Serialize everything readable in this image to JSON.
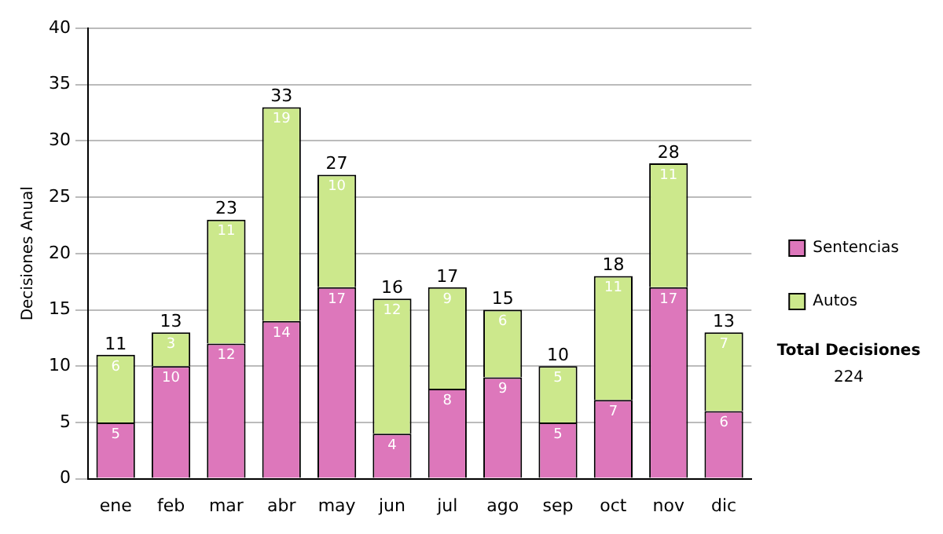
{
  "chart_data": {
    "type": "bar",
    "stacked": true,
    "ylabel": "Decisiones Anual",
    "categories": [
      "ene",
      "feb",
      "mar",
      "abr",
      "may",
      "jun",
      "jul",
      "ago",
      "sep",
      "oct",
      "nov",
      "dic"
    ],
    "series": [
      {
        "name": "Sentencias",
        "color": "#dd77bb",
        "values": [
          5,
          10,
          12,
          14,
          17,
          4,
          8,
          9,
          5,
          7,
          17,
          6
        ]
      },
      {
        "name": "Autos",
        "color": "#cce88c",
        "values": [
          6,
          3,
          11,
          19,
          10,
          12,
          9,
          6,
          5,
          11,
          11,
          7
        ]
      }
    ],
    "ylim": [
      0,
      40
    ],
    "yticks": [
      0,
      5,
      10,
      15,
      20,
      25,
      30,
      35,
      40
    ],
    "grid": "y",
    "legend": "right",
    "data_labels": true,
    "totals": [
      "11",
      "13",
      "23",
      "33",
      "27",
      "16",
      "17",
      "15",
      "10",
      "18",
      "28",
      "13"
    ],
    "annotations": [
      "Total Decisiones",
      "224"
    ]
  }
}
